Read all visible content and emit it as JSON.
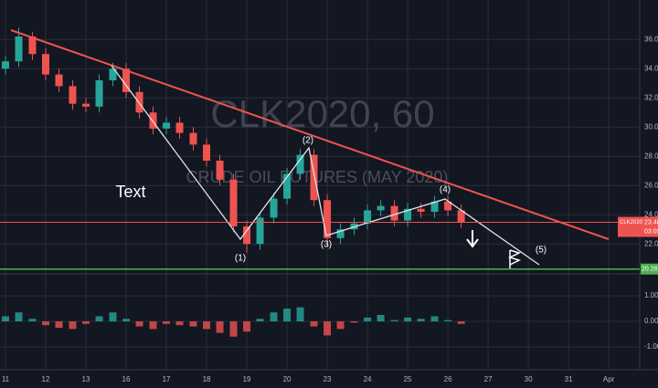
{
  "chart_data": {
    "type": "candlestick",
    "title": "CLK2020, 60",
    "subtitle": "CRUDE OIL FUTURES (MAY 2020)",
    "annotations": [
      "Text",
      "(1)",
      "(2)",
      "(3)",
      "(4)",
      "(5)"
    ],
    "x": [
      0,
      0.33,
      0.67,
      1,
      1.33,
      1.67,
      2,
      2.33,
      2.67,
      3,
      3.33,
      3.67,
      4,
      4.33,
      4.67,
      5,
      5.33,
      5.67,
      6,
      6.33,
      6.67,
      7,
      7.33,
      7.67,
      8,
      8.33,
      8.67,
      9,
      9.33,
      9.67,
      10,
      10.33,
      10.67,
      11,
      11.33
    ],
    "open": [
      34.0,
      34.5,
      36.2,
      35.0,
      33.6,
      32.8,
      31.6,
      31.4,
      33.2,
      34.0,
      32.4,
      31.0,
      29.9,
      30.3,
      29.6,
      28.8,
      27.7,
      26.4,
      23.2,
      22.0,
      23.8,
      25.1,
      26.8,
      28.1,
      25.0,
      22.4,
      23.0,
      23.4,
      24.3,
      24.6,
      23.6,
      24.4,
      24.2,
      24.9,
      24.3
    ],
    "high": [
      34.9,
      36.8,
      36.5,
      35.4,
      34.0,
      33.2,
      32.0,
      33.6,
      34.4,
      34.4,
      32.8,
      31.4,
      30.7,
      30.7,
      30.0,
      29.2,
      28.1,
      26.8,
      23.6,
      24.2,
      25.5,
      27.2,
      28.5,
      28.5,
      25.4,
      23.4,
      23.8,
      24.7,
      25.0,
      25.0,
      24.8,
      24.8,
      25.3,
      25.3,
      24.7
    ],
    "low": [
      33.6,
      34.1,
      34.6,
      33.2,
      32.4,
      31.2,
      31.0,
      31.0,
      32.8,
      32.0,
      30.6,
      29.5,
      29.5,
      29.2,
      28.4,
      27.3,
      26.0,
      22.8,
      21.4,
      21.6,
      23.4,
      24.7,
      26.4,
      24.6,
      21.8,
      22.0,
      22.6,
      23.0,
      23.9,
      23.2,
      23.2,
      23.8,
      23.8,
      23.9,
      23.1
    ],
    "close": [
      34.5,
      36.2,
      35.0,
      33.6,
      32.8,
      31.6,
      31.4,
      33.2,
      34.0,
      32.4,
      31.0,
      29.9,
      30.3,
      29.6,
      28.8,
      27.7,
      26.4,
      23.2,
      22.0,
      23.8,
      25.1,
      26.8,
      28.1,
      25.0,
      22.4,
      23.0,
      23.4,
      24.3,
      24.6,
      23.6,
      24.4,
      24.2,
      24.9,
      24.3,
      23.5
    ],
    "up_color": "#26a69a",
    "down_color": "#ef5350",
    "xlim": [
      -0.136,
      15.77
    ],
    "xticks": [
      {
        "value": 0,
        "label": "11"
      },
      {
        "value": 1,
        "label": "12"
      },
      {
        "value": 2,
        "label": "13"
      },
      {
        "value": 3,
        "label": "16"
      },
      {
        "value": 4,
        "label": "17"
      },
      {
        "value": 5,
        "label": "18"
      },
      {
        "value": 6,
        "label": "19"
      },
      {
        "value": 7,
        "label": "20"
      },
      {
        "value": 8,
        "label": "23"
      },
      {
        "value": 9,
        "label": "24"
      },
      {
        "value": 10,
        "label": "25"
      },
      {
        "value": 11,
        "label": "26"
      },
      {
        "value": 12,
        "label": "27"
      },
      {
        "value": 13,
        "label": "30"
      },
      {
        "value": 14,
        "label": "31"
      },
      {
        "value": 15,
        "label": "Apr"
      }
    ],
    "ylim": [
      20,
      38.7
    ],
    "yticks": [
      {
        "value": 22,
        "label": "22.00"
      },
      {
        "value": 24,
        "label": "24.00"
      },
      {
        "value": 26,
        "label": "26.00"
      },
      {
        "value": 28,
        "label": "28.00"
      },
      {
        "value": 30,
        "label": "30.00"
      },
      {
        "value": 32,
        "label": "32.00"
      },
      {
        "value": 34,
        "label": "34.00"
      },
      {
        "value": 36,
        "label": "36.00"
      }
    ],
    "grid": true,
    "last_price": {
      "label": "CLK2020",
      "value": 23.48,
      "timer": "03:09",
      "color": "#ef5350"
    },
    "support": {
      "value": 20.28,
      "color": "#4caf50"
    },
    "indicator": {
      "type": "bar",
      "values": [
        0.2,
        0.35,
        0.1,
        -0.15,
        -0.25,
        -0.3,
        -0.1,
        0.2,
        0.35,
        0.1,
        -0.2,
        -0.3,
        -0.1,
        -0.15,
        -0.2,
        -0.3,
        -0.45,
        -0.6,
        -0.4,
        0.1,
        0.35,
        0.5,
        0.55,
        -0.2,
        -0.55,
        -0.3,
        -0.05,
        0.15,
        0.25,
        0.05,
        0.15,
        0.1,
        0.2,
        0.05,
        -0.1
      ],
      "ylim": [
        -1.86,
        1.86
      ],
      "yticks": [
        {
          "value": 1,
          "label": "1.00"
        },
        {
          "value": 0,
          "label": "0.00"
        },
        {
          "value": -1,
          "label": "-1.00"
        }
      ]
    }
  }
}
